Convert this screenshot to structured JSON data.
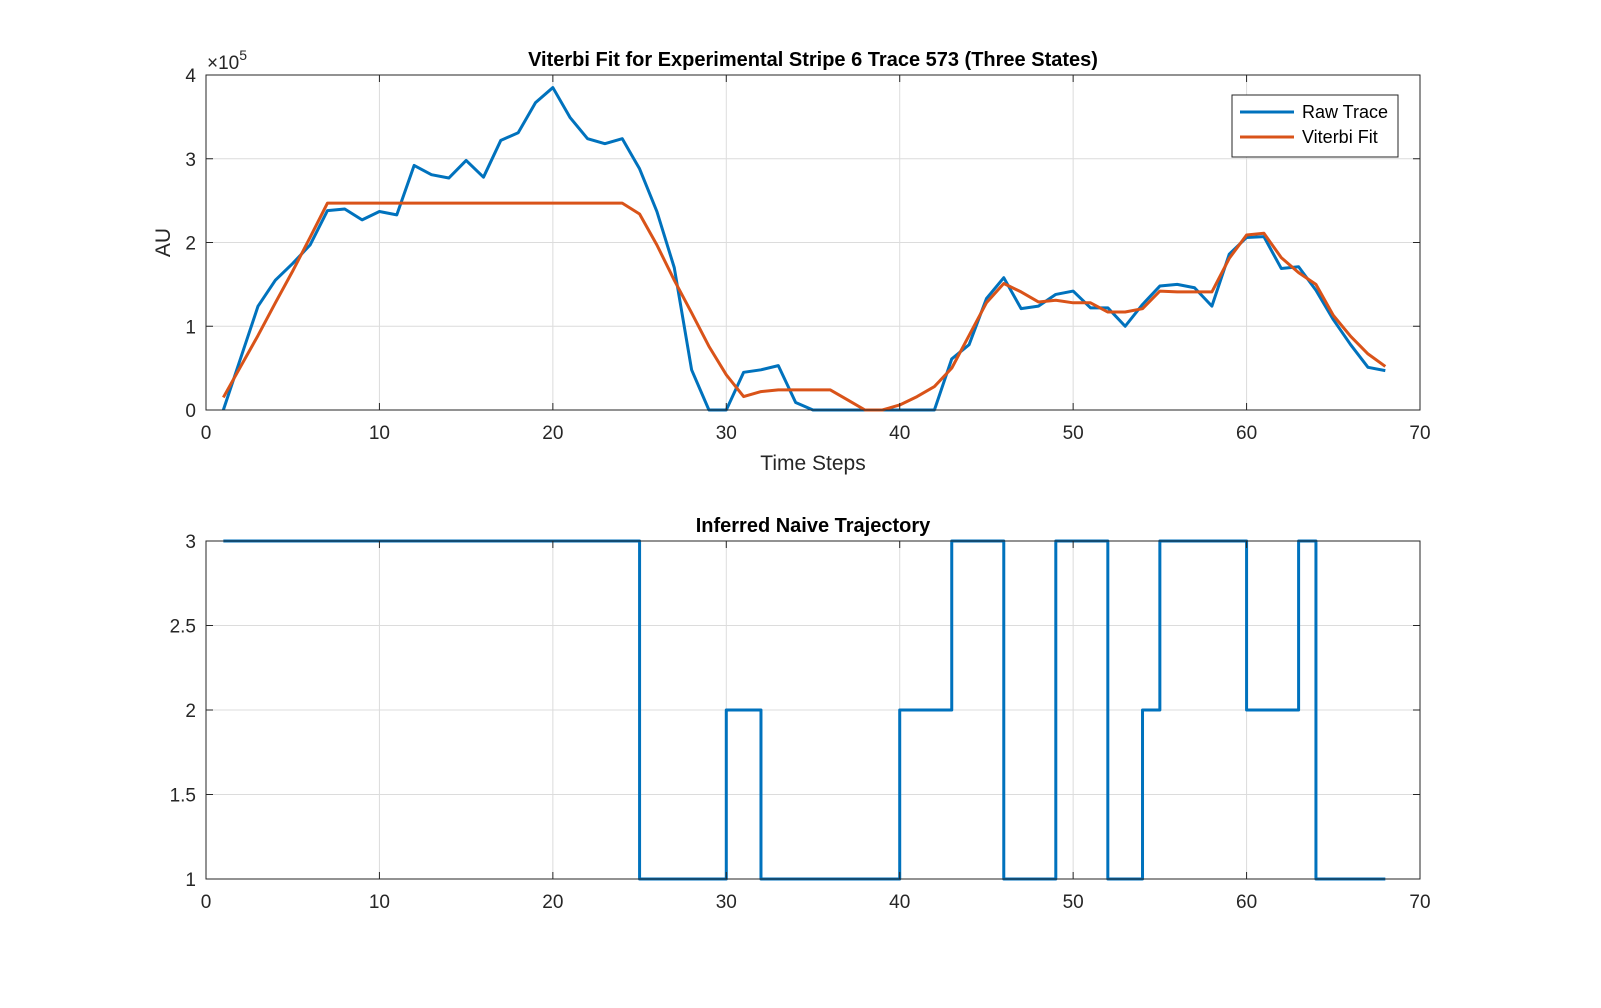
{
  "chart_data": [
    {
      "type": "line",
      "title": "Viterbi Fit for Experimental Stripe 6 Trace 573 (Three States)",
      "xlabel": "Time Steps",
      "ylabel": "AU",
      "y_exponent_label": "×10",
      "y_exponent": "5",
      "xlim": [
        0,
        70
      ],
      "ylim": [
        0,
        4
      ],
      "xticks": [
        0,
        10,
        20,
        30,
        40,
        50,
        60,
        70
      ],
      "yticks": [
        0,
        1,
        2,
        3,
        4
      ],
      "grid": true,
      "legend_position": "top-right",
      "series": [
        {
          "name": "Raw Trace",
          "color": "#0072BD",
          "x": [
            1,
            2,
            3,
            4,
            5,
            6,
            7,
            8,
            9,
            10,
            11,
            12,
            13,
            14,
            15,
            16,
            17,
            18,
            19,
            20,
            21,
            22,
            23,
            24,
            25,
            26,
            27,
            28,
            29,
            30,
            31,
            32,
            33,
            34,
            35,
            36,
            37,
            38,
            39,
            40,
            41,
            42,
            43,
            44,
            45,
            46,
            47,
            48,
            49,
            50,
            51,
            52,
            53,
            54,
            55,
            56,
            57,
            58,
            59,
            60,
            61,
            62,
            63,
            64,
            65,
            66,
            67,
            68
          ],
          "values": [
            0.0,
            0.62,
            1.24,
            1.55,
            1.75,
            1.97,
            2.38,
            2.4,
            2.27,
            2.37,
            2.33,
            2.92,
            2.81,
            2.77,
            2.98,
            2.78,
            3.22,
            3.31,
            3.67,
            3.85,
            3.49,
            3.24,
            3.18,
            3.24,
            2.88,
            2.37,
            1.7,
            0.48,
            0.0,
            0.0,
            0.45,
            0.48,
            0.53,
            0.09,
            0.0,
            0.0,
            0.0,
            0.0,
            0.0,
            0.0,
            0.0,
            0.0,
            0.61,
            0.78,
            1.33,
            1.58,
            1.21,
            1.24,
            1.38,
            1.42,
            1.22,
            1.22,
            1.0,
            1.26,
            1.48,
            1.5,
            1.46,
            1.24,
            1.86,
            2.06,
            2.07,
            1.69,
            1.71,
            1.43,
            1.08,
            0.78,
            0.51,
            0.47
          ]
        },
        {
          "name": "Viterbi Fit",
          "color": "#D95319",
          "x": [
            1,
            2,
            3,
            4,
            5,
            6,
            7,
            8,
            9,
            10,
            11,
            12,
            13,
            14,
            15,
            16,
            17,
            18,
            19,
            20,
            21,
            22,
            23,
            24,
            25,
            26,
            27,
            28,
            29,
            30,
            31,
            32,
            33,
            34,
            35,
            36,
            37,
            38,
            39,
            40,
            41,
            42,
            43,
            44,
            45,
            46,
            47,
            48,
            49,
            50,
            51,
            52,
            53,
            54,
            55,
            56,
            57,
            58,
            59,
            60,
            61,
            62,
            63,
            64,
            65,
            66,
            67,
            68
          ],
          "values": [
            0.15,
            0.52,
            0.89,
            1.28,
            1.66,
            2.06,
            2.47,
            2.47,
            2.47,
            2.47,
            2.47,
            2.47,
            2.47,
            2.47,
            2.47,
            2.47,
            2.47,
            2.47,
            2.47,
            2.47,
            2.47,
            2.47,
            2.47,
            2.47,
            2.34,
            1.97,
            1.55,
            1.16,
            0.76,
            0.42,
            0.16,
            0.22,
            0.24,
            0.24,
            0.24,
            0.24,
            0.12,
            0.0,
            0.0,
            0.06,
            0.16,
            0.28,
            0.5,
            0.89,
            1.28,
            1.51,
            1.41,
            1.29,
            1.31,
            1.28,
            1.28,
            1.17,
            1.17,
            1.21,
            1.42,
            1.41,
            1.41,
            1.41,
            1.81,
            2.09,
            2.11,
            1.82,
            1.64,
            1.5,
            1.13,
            0.88,
            0.67,
            0.52
          ]
        }
      ]
    },
    {
      "type": "line",
      "title": "Inferred Naive Trajectory",
      "xlabel": "",
      "ylabel": "",
      "xlim": [
        0,
        70
      ],
      "ylim": [
        1,
        3
      ],
      "xticks": [
        0,
        10,
        20,
        30,
        40,
        50,
        60,
        70
      ],
      "yticks": [
        1,
        1.5,
        2,
        2.5,
        3
      ],
      "grid": true,
      "step": true,
      "series": [
        {
          "color": "#0072BD",
          "x": [
            1,
            2,
            3,
            4,
            5,
            6,
            7,
            8,
            9,
            10,
            11,
            12,
            13,
            14,
            15,
            16,
            17,
            18,
            19,
            20,
            21,
            22,
            23,
            24,
            25,
            26,
            27,
            28,
            29,
            30,
            31,
            32,
            33,
            34,
            35,
            36,
            37,
            38,
            39,
            40,
            41,
            42,
            43,
            44,
            45,
            46,
            47,
            48,
            49,
            50,
            51,
            52,
            53,
            54,
            55,
            56,
            57,
            58,
            59,
            60,
            61,
            62,
            63,
            64,
            65,
            66,
            67,
            68
          ],
          "values": [
            3,
            3,
            3,
            3,
            3,
            3,
            3,
            3,
            3,
            3,
            3,
            3,
            3,
            3,
            3,
            3,
            3,
            3,
            3,
            3,
            3,
            3,
            3,
            3,
            1,
            1,
            1,
            1,
            1,
            2,
            2,
            1,
            1,
            1,
            1,
            1,
            1,
            1,
            1,
            2,
            2,
            2,
            3,
            3,
            3,
            1,
            1,
            1,
            3,
            3,
            3,
            1,
            1,
            2,
            3,
            3,
            3,
            3,
            3,
            2,
            2,
            2,
            3,
            1,
            1,
            1,
            1,
            1
          ]
        }
      ]
    }
  ]
}
